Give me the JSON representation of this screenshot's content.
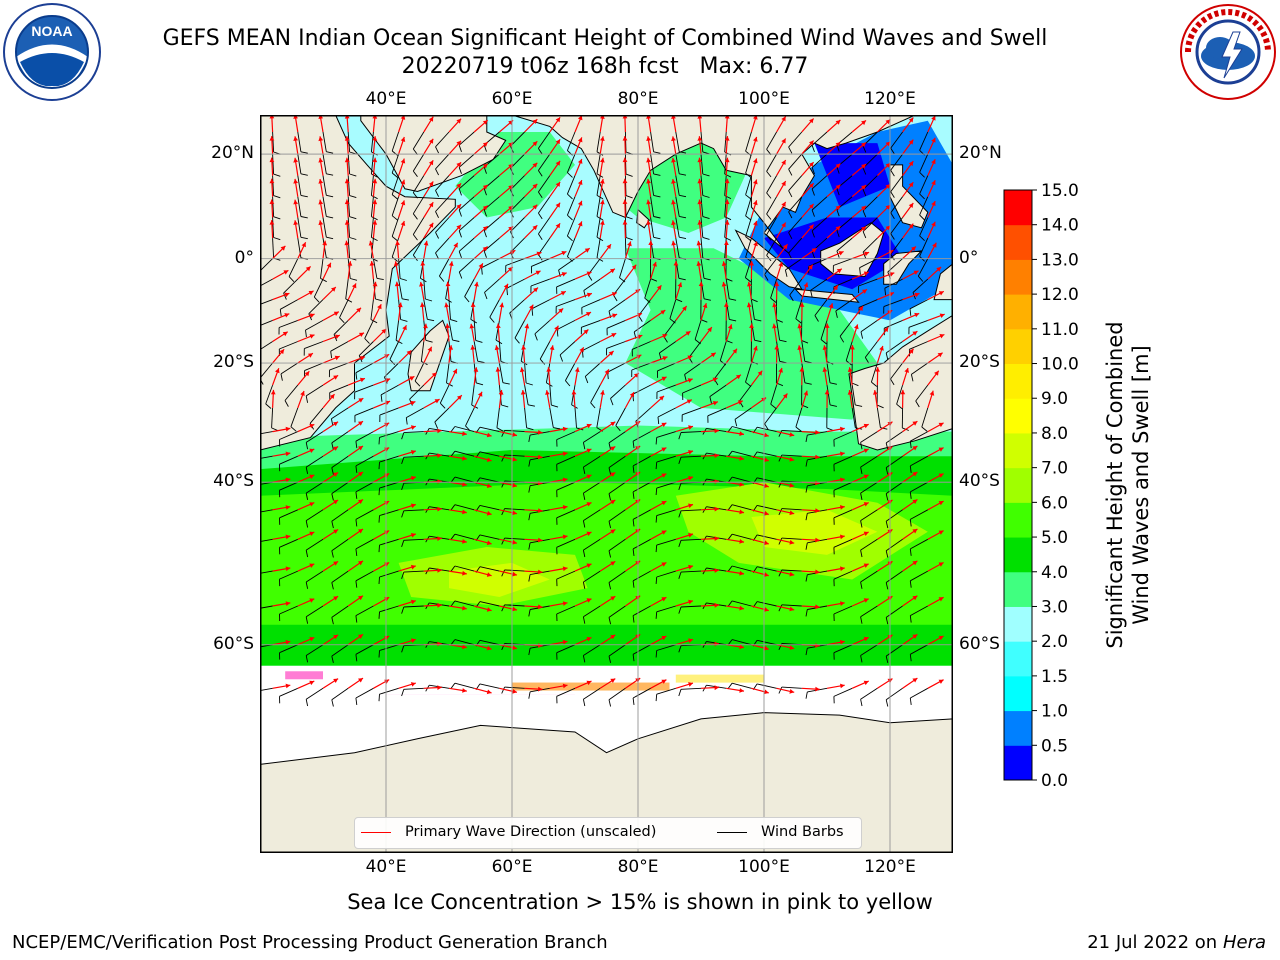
{
  "title": {
    "line1": "GEFS MEAN Indian Ocean Significant Height of Combined Wind Waves and Swell",
    "line2": "20220719 t06z 168h fcst   Max: 6.77"
  },
  "logos": {
    "left": {
      "icon": "noaa-logo",
      "text": "NOAA",
      "ring_text": "NATIONAL OCEANIC AND ATMOSPHERIC ADMINISTRATION · U.S. DEPARTMENT OF COMMERCE"
    },
    "right": {
      "icon": "nws-logo",
      "ring_text": "NATIONAL WEATHER SERVICE"
    }
  },
  "map": {
    "lon_range": [
      20,
      130
    ],
    "lat_range": [
      -75,
      27
    ],
    "lon_ticks": [
      "40°E",
      "60°E",
      "80°E",
      "100°E",
      "120°E"
    ],
    "lon_tick_values": [
      40,
      60,
      80,
      100,
      120
    ],
    "lat_ticks": [
      "20°N",
      "0°",
      "20°S",
      "40°S",
      "60°S"
    ],
    "lat_tick_values": [
      20,
      0,
      -20,
      -40,
      -60
    ],
    "grid": true,
    "land_color": "#efecdc",
    "ice_colors": [
      "#ff66cc",
      "#ff99dd",
      "#ffaa44",
      "#ffee66"
    ]
  },
  "legend": {
    "placement": "lower-center",
    "entries": [
      {
        "label": "Primary Wave Direction (unscaled)",
        "color": "#ff0000"
      },
      {
        "label": "Wind Barbs",
        "color": "#000000"
      }
    ]
  },
  "colorbar": {
    "label_line1": "Significant Height of Combined",
    "label_line2": "Wind Waves and Swell [m]",
    "levels": [
      "0.0",
      "0.5",
      "1.0",
      "1.5",
      "2.0",
      "3.0",
      "4.0",
      "5.0",
      "6.0",
      "7.0",
      "8.0",
      "9.0",
      "10.0",
      "11.0",
      "12.0",
      "13.0",
      "14.0",
      "15.0"
    ],
    "colors": [
      "#0000ff",
      "#0080ff",
      "#00ffff",
      "#40ffff",
      "#a0ffff",
      "#40ff80",
      "#00e000",
      "#40ff00",
      "#a0ff00",
      "#d0ff00",
      "#ffff00",
      "#ffee00",
      "#ffd000",
      "#ffb000",
      "#ff8000",
      "#ff5000",
      "#ff0000"
    ]
  },
  "caption": "Sea Ice Concentration > 15% is shown in pink to yellow",
  "footer": {
    "left": "NCEP/EMC/Verification Post Processing Product Generation Branch",
    "right_date": "21 Jul 2022 on",
    "right_host": "Hera"
  }
}
